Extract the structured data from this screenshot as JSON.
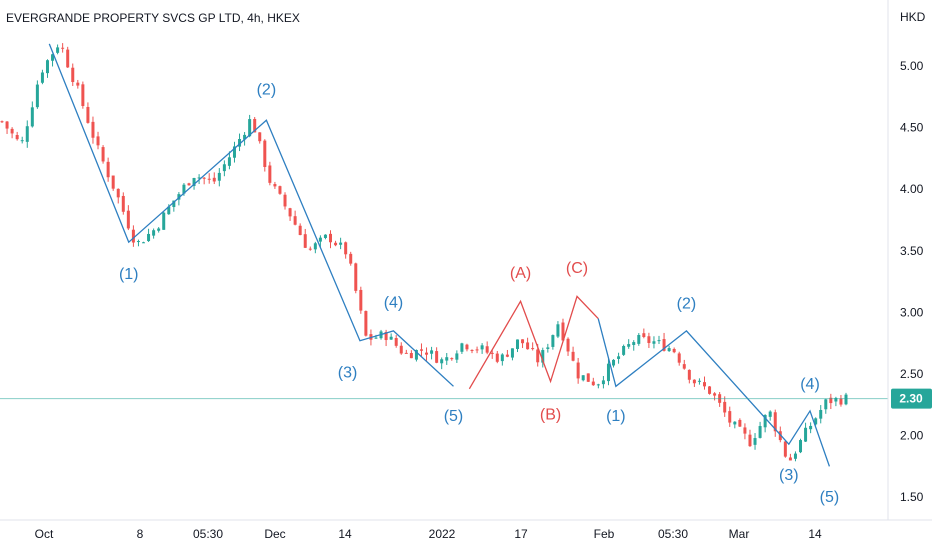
{
  "chart_data": {
    "type": "candlestick",
    "title": "EVERGRANDE PROPERTY SVCS GP LTD, 4h, HKEX",
    "currency": "HKD",
    "ylim": [
      1.4,
      5.45
    ],
    "y_ticks": [
      "5.00",
      "4.50",
      "4.00",
      "3.50",
      "3.00",
      "2.50",
      "2.00",
      "1.50"
    ],
    "x_ticks": [
      "Oct",
      "8",
      "05:30",
      "Dec",
      "14",
      "2022",
      "17",
      "Feb",
      "05:30",
      "Mar",
      "14"
    ],
    "last_price": "2.30",
    "price_path": [
      4.55,
      4.35,
      4.95,
      5.2,
      4.78,
      4.32,
      3.95,
      3.55,
      3.68,
      3.92,
      4.12,
      4.05,
      4.3,
      4.58,
      4.05,
      3.8,
      3.5,
      3.62,
      3.48,
      2.78,
      2.82,
      2.66,
      2.7,
      2.6,
      2.75,
      2.7,
      2.62,
      2.78,
      2.6,
      2.92,
      2.5,
      2.42,
      2.62,
      2.78,
      2.76,
      2.7,
      2.45,
      2.35,
      2.1,
      1.95,
      2.2,
      1.78,
      2.05,
      2.28,
      2.3
    ],
    "wave_series": [
      {
        "color": "#2e7fc1",
        "points": [
          [
            0.15,
            5.18
          ],
          [
            2.4,
            3.57
          ],
          [
            6.3,
            4.56
          ],
          [
            8.95,
            2.77
          ],
          [
            9.9,
            2.85
          ],
          [
            11.6,
            2.4
          ]
        ]
      },
      {
        "color": "#e24c4c",
        "points": [
          [
            12.05,
            2.38
          ],
          [
            13.5,
            3.09
          ],
          [
            14.35,
            2.44
          ],
          [
            15.1,
            3.13
          ],
          [
            15.7,
            2.95
          ]
        ]
      },
      {
        "color": "#2e7fc1",
        "points": [
          [
            15.7,
            2.95
          ],
          [
            16.2,
            2.4
          ],
          [
            18.2,
            2.85
          ],
          [
            21.1,
            1.93
          ],
          [
            21.7,
            2.2
          ],
          [
            22.25,
            1.75
          ]
        ]
      }
    ],
    "annotations": [
      {
        "text": "(1)",
        "x": 2.4,
        "y": 3.27,
        "color": "blue"
      },
      {
        "text": "(2)",
        "x": 6.3,
        "y": 4.77,
        "color": "blue"
      },
      {
        "text": "(3)",
        "x": 8.6,
        "y": 2.47,
        "color": "blue"
      },
      {
        "text": "(4)",
        "x": 9.9,
        "y": 3.04,
        "color": "blue"
      },
      {
        "text": "(5)",
        "x": 11.6,
        "y": 2.12,
        "color": "blue"
      },
      {
        "text": "(A)",
        "x": 13.5,
        "y": 3.28,
        "color": "red"
      },
      {
        "text": "(B)",
        "x": 14.35,
        "y": 2.13,
        "color": "red"
      },
      {
        "text": "(C)",
        "x": 15.1,
        "y": 3.32,
        "color": "red"
      },
      {
        "text": "(1)",
        "x": 16.2,
        "y": 2.12,
        "color": "blue"
      },
      {
        "text": "(2)",
        "x": 18.2,
        "y": 3.03,
        "color": "blue"
      },
      {
        "text": "(3)",
        "x": 21.1,
        "y": 1.64,
        "color": "blue"
      },
      {
        "text": "(4)",
        "x": 21.7,
        "y": 2.38,
        "color": "blue"
      },
      {
        "text": "(5)",
        "x": 22.25,
        "y": 1.46,
        "color": "blue"
      }
    ],
    "colors": {
      "up": "#26a69a",
      "down": "#ef5350",
      "wave_blue": "#2e7fc1",
      "wave_red": "#e24c4c",
      "last_price_line": "#26a69a",
      "grid": "#ffffff"
    }
  }
}
